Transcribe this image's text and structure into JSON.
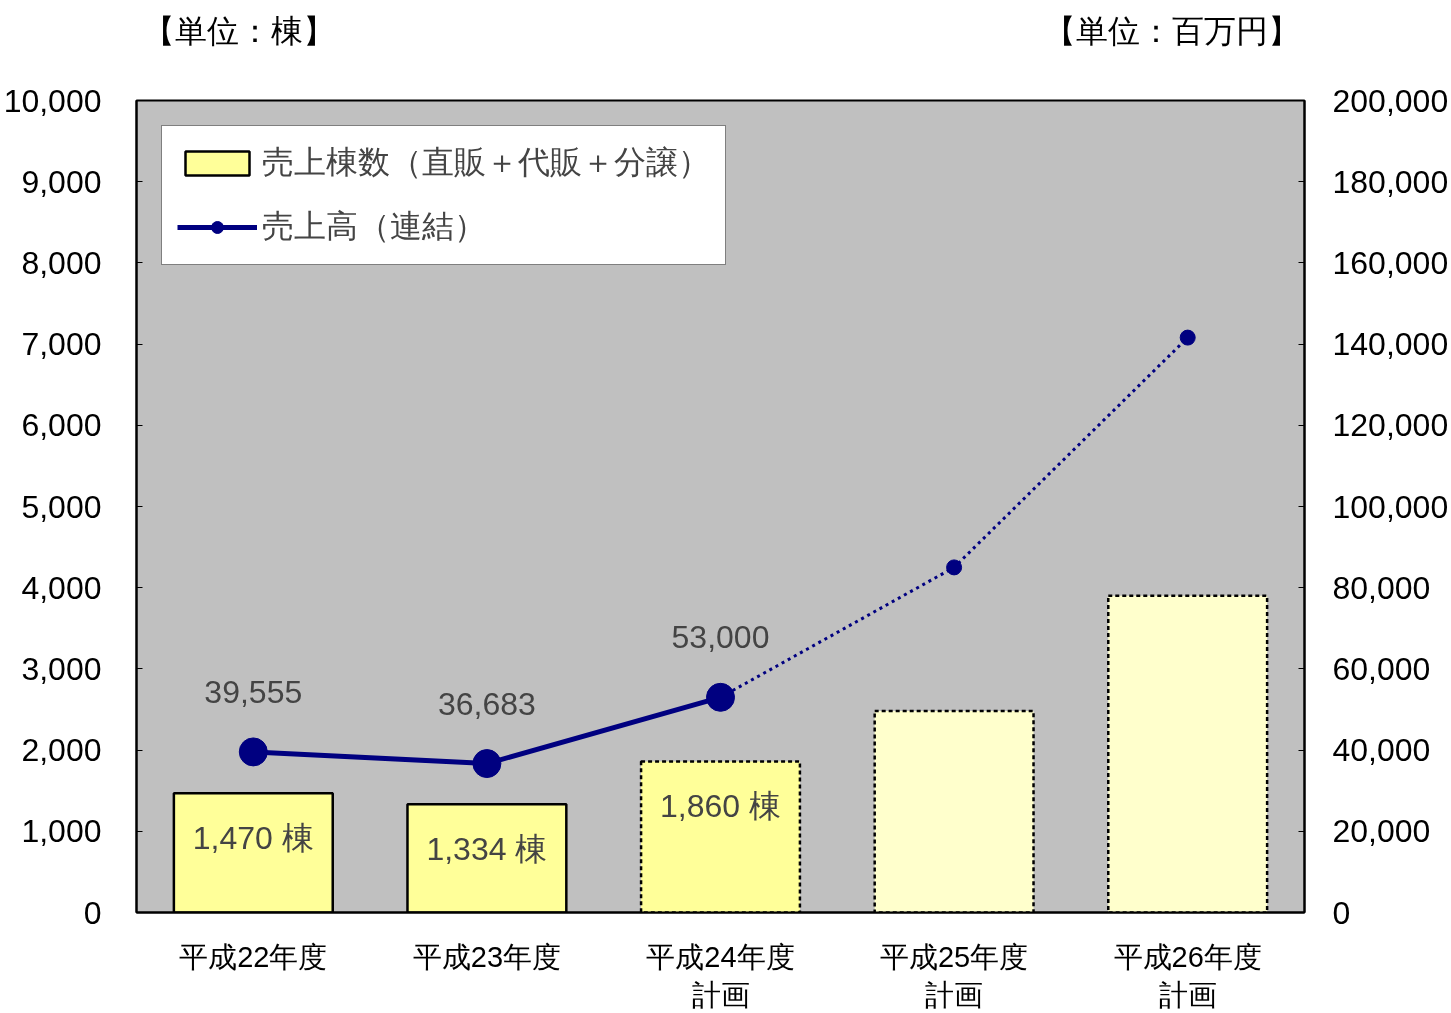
{
  "chart_data": {
    "type": "bar",
    "categories": [
      "平成22年度",
      "平成23年度",
      "平成24年度計画",
      "平成25年度計画",
      "平成26年度計画"
    ],
    "series": [
      {
        "name": "売上棟数（直販＋代販＋分譲）",
        "colors": [
          "#ffff99",
          "#ffff99",
          null,
          null,
          null
        ],
        "line_style": "solid",
        "values": [
          1470,
          1334,
          null,
          null,
          null
        ],
        "value_labels": [
          "1,470 棟",
          "1,334 棟",
          null,
          null,
          null
        ]
      },
      {
        "colors": [
          null,
          null,
          "#ffff99",
          "#ffffcc",
          "#ffffcc"
        ],
        "line_style": "dashed",
        "values": [
          null,
          null,
          1860,
          2480,
          3900
        ],
        "value_labels": [
          null,
          null,
          "1,860 棟",
          null,
          null
        ]
      },
      {
        "type": "line",
        "axis": "y2",
        "color": "#000080",
        "line_style": "dotted",
        "marker": "none",
        "values": [
          null,
          null,
          53000,
          85000,
          141600
        ]
      },
      {
        "type": "scatter",
        "axis": "y2",
        "color": "#000080",
        "marker": "circle",
        "values": [
          null,
          null,
          null,
          85000,
          141600
        ]
      },
      {
        "name": "売上高（連結）",
        "type": "line",
        "axis": "y2",
        "color": "#000080",
        "line_style": "solid",
        "marker": "circle",
        "values": [
          39555,
          36683,
          53000,
          null,
          null
        ],
        "value_labels": [
          "39,555",
          "36,683",
          "53,000",
          null,
          null
        ]
      }
    ],
    "ylim": [
      0,
      10000
    ],
    "yticks": [
      0,
      {
        "value": 1000,
        "label": "1,000"
      },
      {
        "value": 2000,
        "label": "2,000"
      },
      {
        "value": 3000,
        "label": "3,000"
      },
      {
        "value": 4000,
        "label": "4,000"
      },
      {
        "value": 5000,
        "label": "5,000"
      },
      {
        "value": 6000,
        "label": "6,000"
      },
      {
        "value": 7000,
        "label": "7,000"
      },
      {
        "value": 8000,
        "label": "8,000"
      },
      {
        "value": 9000,
        "label": "9,000"
      },
      {
        "value": 10000,
        "label": "10,000"
      }
    ],
    "y2lim": [
      0,
      200000
    ],
    "y2ticks": [
      0,
      {
        "value": 20000,
        "label": "20,000"
      },
      {
        "value": 40000,
        "label": "40,000"
      },
      {
        "value": 60000,
        "label": "60,000"
      },
      {
        "value": 80000,
        "label": "80,000"
      },
      {
        "value": 100000,
        "label": "100,000"
      },
      {
        "value": 120000,
        "label": "120,000"
      },
      {
        "value": 140000,
        "label": "140,000"
      },
      {
        "value": 160000,
        "label": "160,000"
      },
      {
        "value": 180000,
        "label": "180,000"
      },
      {
        "value": 200000,
        "label": "200,000"
      }
    ],
    "annotations": [
      "【単位：棟】",
      "【単位：百万円】"
    ],
    "grid": false,
    "legend": "top left"
  }
}
